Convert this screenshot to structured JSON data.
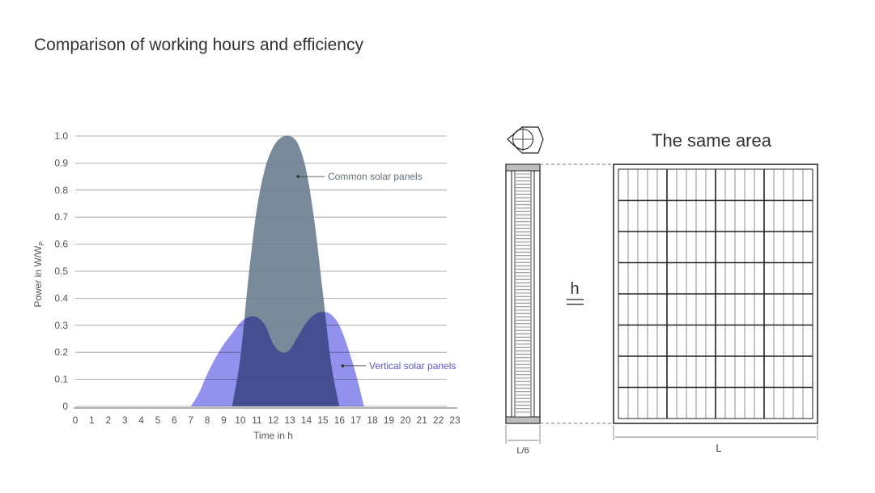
{
  "page": {
    "title": "Comparison of working hours and efficiency"
  },
  "chart_data": {
    "type": "area",
    "x": [
      7,
      7.5,
      8,
      8.5,
      9,
      9.5,
      10,
      10.5,
      11,
      11.5,
      12,
      12.5,
      13,
      13.5,
      14,
      14.5,
      15,
      15.5,
      16,
      16.5,
      17,
      17.5
    ],
    "xticks": [
      0,
      1,
      2,
      3,
      4,
      5,
      6,
      7,
      8,
      9,
      10,
      11,
      12,
      13,
      14,
      15,
      16,
      17,
      18,
      19,
      20,
      21,
      22,
      23
    ],
    "xlim": [
      0,
      23
    ],
    "ylim": [
      0,
      1.0
    ],
    "yticks": [
      0,
      0.1,
      0.2,
      0.3,
      0.4,
      0.5,
      0.6,
      0.7,
      0.8,
      0.9,
      1.0
    ],
    "ytick_labels": [
      "0",
      "0.1",
      "0.2",
      "0.3",
      "0.4",
      "0.5",
      "0.6",
      "0.7",
      "0.8",
      "0.9",
      "1.0"
    ],
    "xlabel": "Time in h",
    "ylabel_main": "Power in W/W",
    "ylabel_sub": "P",
    "grid": "horizontal",
    "series": [
      {
        "name": "Common solar panels",
        "color": "#6e8092",
        "x": [
          9.5,
          10,
          10.5,
          11,
          11.5,
          12,
          12.5,
          13,
          13.5,
          14,
          14.5,
          15,
          15.5,
          16
        ],
        "values": [
          0,
          0.18,
          0.48,
          0.73,
          0.88,
          0.96,
          0.995,
          1.0,
          0.97,
          0.87,
          0.68,
          0.42,
          0.16,
          0
        ]
      },
      {
        "name": "Vertical solar panels",
        "color": "#6a66e8",
        "x": [
          7,
          7.5,
          8,
          8.5,
          9,
          9.5,
          10,
          10.5,
          11,
          11.5,
          12,
          12.5,
          13,
          13.5,
          14,
          14.5,
          15,
          15.5,
          16,
          16.5,
          17,
          17.5
        ],
        "values": [
          0,
          0.05,
          0.12,
          0.18,
          0.23,
          0.27,
          0.31,
          0.33,
          0.33,
          0.3,
          0.23,
          0.2,
          0.21,
          0.26,
          0.31,
          0.34,
          0.35,
          0.34,
          0.3,
          0.22,
          0.12,
          0
        ]
      }
    ],
    "annotations": [
      {
        "text": "Common solar panels",
        "series": 0
      },
      {
        "text": "Vertical solar panels",
        "series": 1
      }
    ]
  },
  "diagram": {
    "heading": "The same area",
    "height_label": "h",
    "length_label": "L",
    "width_label": "L/6"
  }
}
